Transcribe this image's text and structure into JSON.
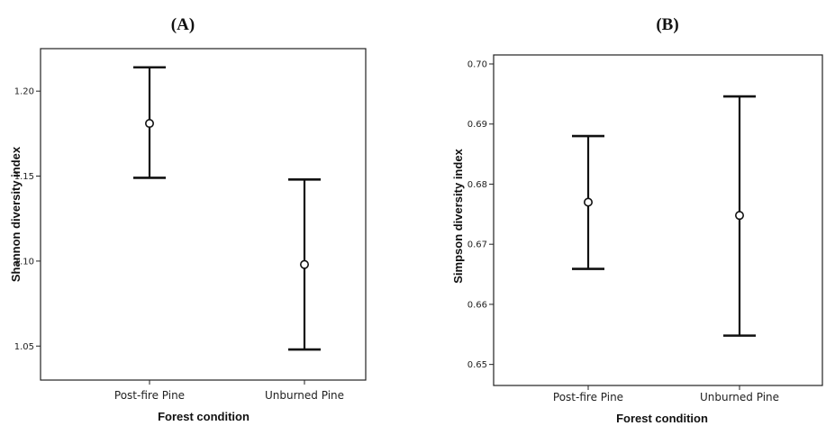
{
  "chart_data": [
    {
      "type": "errorbar",
      "panel_label": "(A)",
      "xlabel": "Forest condition",
      "ylabel": "Shannon diversity index",
      "categories": [
        "Post-fire Pine",
        "Unburned Pine"
      ],
      "ylim": [
        1.03,
        1.225
      ],
      "yticks": [
        "1.05",
        "1.10",
        "1.15",
        "1.20"
      ],
      "series": [
        {
          "mean": [
            1.181,
            1.098
          ],
          "lower": [
            1.149,
            1.048
          ],
          "upper": [
            1.214,
            1.148
          ]
        }
      ],
      "grid": false
    },
    {
      "type": "errorbar",
      "panel_label": "(B)",
      "xlabel": "Forest condition",
      "ylabel": "Simpson diversity index",
      "categories": [
        "Post-fire Pine",
        "Unburned Pine"
      ],
      "ylim": [
        0.6465,
        0.7015
      ],
      "yticks": [
        "0.65",
        "0.66",
        "0.67",
        "0.68",
        "0.69",
        "0.70"
      ],
      "series": [
        {
          "mean": [
            0.677,
            0.6748
          ],
          "lower": [
            0.6659,
            0.6548
          ],
          "upper": [
            0.688,
            0.6946
          ]
        }
      ],
      "grid": false
    }
  ]
}
